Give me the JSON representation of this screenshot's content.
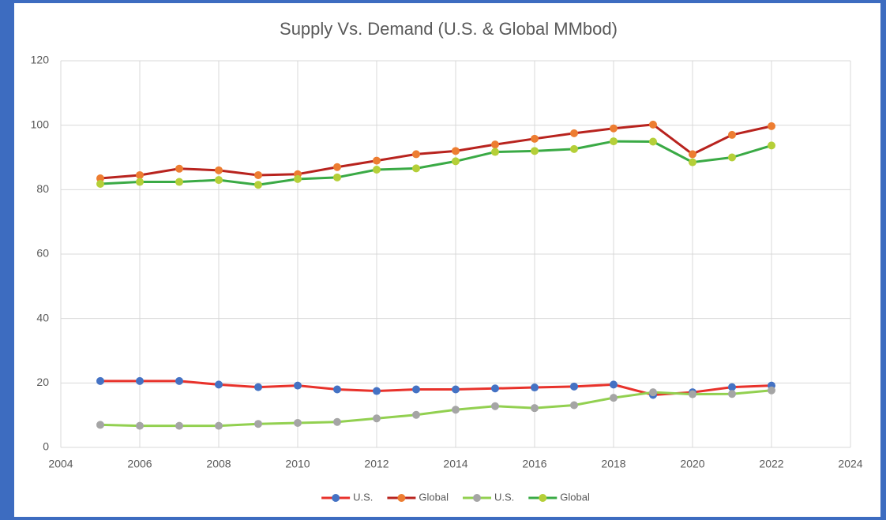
{
  "chart_data": {
    "type": "line",
    "title": "Supply Vs. Demand (U.S. & Global MMbod)",
    "x": [
      2005,
      2006,
      2007,
      2008,
      2009,
      2010,
      2011,
      2012,
      2013,
      2014,
      2015,
      2016,
      2017,
      2018,
      2019,
      2020,
      2021,
      2022
    ],
    "series": [
      {
        "name": "U.S.",
        "color": "#e8322b",
        "marker_color": "#4472c4",
        "values": [
          20.6,
          20.6,
          20.6,
          19.5,
          18.7,
          19.2,
          18.0,
          17.5,
          18.0,
          18.0,
          18.3,
          18.6,
          18.9,
          19.5,
          16.3,
          17.1,
          18.7,
          19.2
        ]
      },
      {
        "name": "Global",
        "color": "#b8231e",
        "marker_color": "#ed7d31",
        "values": [
          83.5,
          84.5,
          86.5,
          86.0,
          84.5,
          84.8,
          87.0,
          89.0,
          91.0,
          92.0,
          94.0,
          95.8,
          97.5,
          99.0,
          100.2,
          91.0,
          97.0,
          99.7
        ]
      },
      {
        "name": "U.S.",
        "color": "#92d050",
        "marker_color": "#a5a5a5",
        "values": [
          7.0,
          6.7,
          6.7,
          6.7,
          7.3,
          7.6,
          7.9,
          9.0,
          10.1,
          11.7,
          12.8,
          12.2,
          13.1,
          15.4,
          17.1,
          16.5,
          16.6,
          17.7
        ]
      },
      {
        "name": "Global",
        "color": "#3aaa45",
        "marker_color": "#b5cf38",
        "values": [
          81.8,
          82.4,
          82.4,
          83.0,
          81.5,
          83.3,
          83.8,
          86.2,
          86.6,
          88.8,
          91.7,
          92.0,
          92.6,
          95.0,
          94.9,
          88.5,
          90.0,
          93.7
        ]
      }
    ],
    "xlim": [
      2004,
      2024
    ],
    "xticks": [
      2004,
      2006,
      2008,
      2010,
      2012,
      2014,
      2016,
      2018,
      2020,
      2022,
      2024
    ],
    "ylim": [
      0,
      120
    ],
    "yticks": [
      0,
      20,
      40,
      60,
      80,
      100,
      120
    ],
    "grid": true,
    "legend": "bottom"
  }
}
